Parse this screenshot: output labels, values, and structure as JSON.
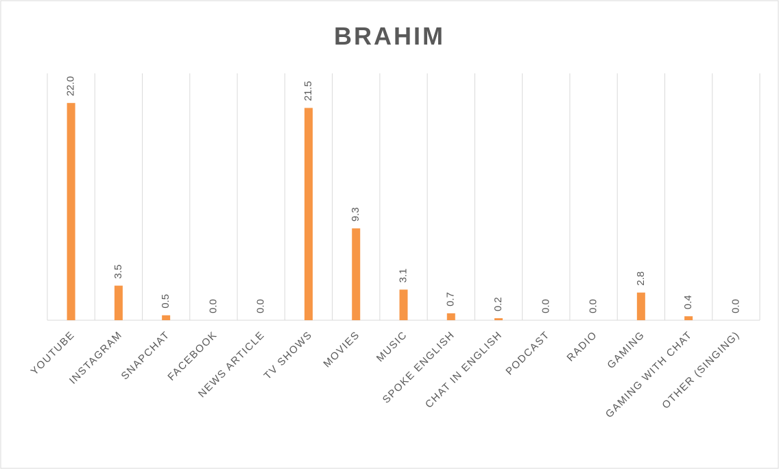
{
  "chart_data": {
    "type": "bar",
    "title": "BRAHIM",
    "categories": [
      "YOUTUBE",
      "INSTAGRAM",
      "SNAPCHAT",
      "FACEBOOK",
      "NEWS ARTICLE",
      "TV SHOWS",
      "MOVIES",
      "MUSIC",
      "SPOKE ENGLISH",
      "CHAT IN ENGLISH",
      "PODCAST",
      "RADIO",
      "GAMING",
      "GAMING WITH CHAT",
      "OTHER (SINGING)"
    ],
    "values": [
      22.0,
      3.5,
      0.5,
      0,
      0,
      21.5,
      9.3,
      3.1,
      0.7,
      0.2,
      0,
      0,
      2.8,
      0.4,
      0
    ],
    "value_labels": [
      "22.0",
      "3.5",
      "0.5",
      "0.0",
      "0.0",
      "21.5",
      "9.3",
      "3.1",
      "0.7",
      "0.2",
      "0.0",
      "0.0",
      "2.8",
      "0.4",
      "0.0"
    ],
    "color": "#f79646",
    "ylim": [
      0,
      25
    ],
    "grid": true
  }
}
